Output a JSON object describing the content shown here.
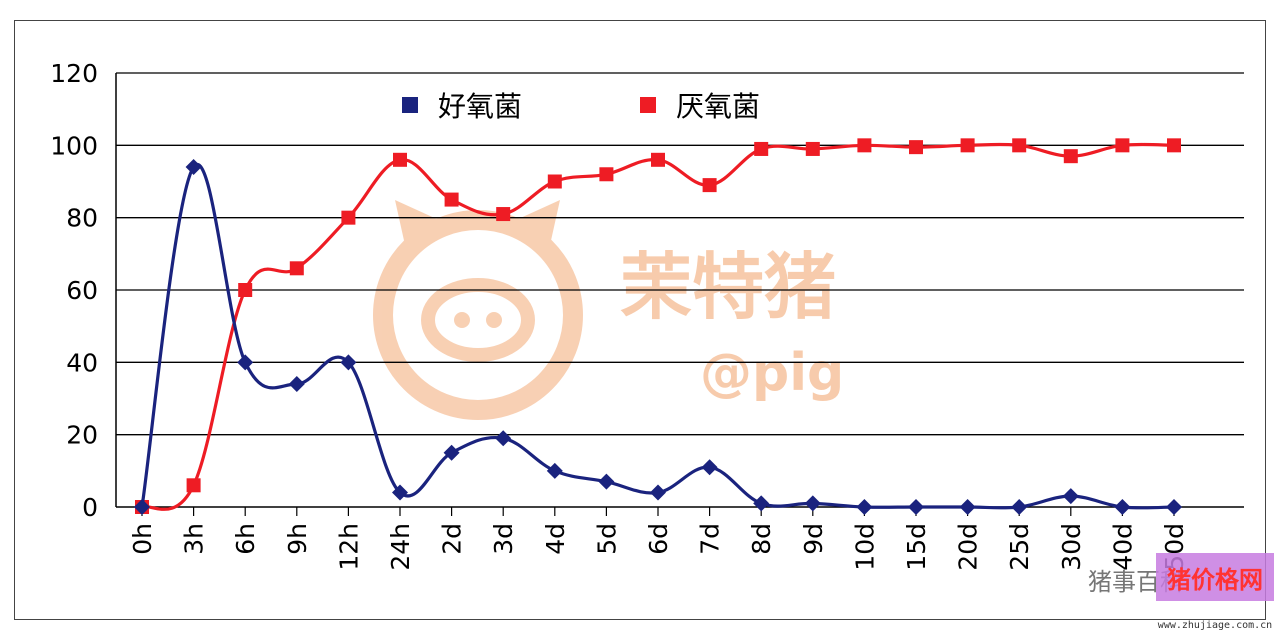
{
  "chart_data": {
    "type": "line",
    "title": "",
    "xlabel": "",
    "ylabel": "",
    "ylim": [
      0,
      120
    ],
    "yticks": [
      0,
      20,
      40,
      60,
      80,
      100,
      120
    ],
    "grid": "horizontal",
    "legend_position": "top-center",
    "categories": [
      "0h",
      "3h",
      "6h",
      "9h",
      "12h",
      "24h",
      "2d",
      "3d",
      "4d",
      "5d",
      "6d",
      "7d",
      "8d",
      "9d",
      "10d",
      "15d",
      "20d",
      "25d",
      "30d",
      "40d",
      "50d"
    ],
    "series": [
      {
        "name": "好氧菌",
        "color": "#1a237e",
        "marker": "diamond",
        "values": [
          0,
          94,
          40,
          34,
          40,
          4,
          15,
          19,
          10,
          7,
          4,
          11,
          1,
          1,
          0,
          0,
          0,
          0,
          3,
          0,
          0
        ]
      },
      {
        "name": "厌氧菌",
        "color": "#ee1c24",
        "marker": "square",
        "values": [
          0,
          6,
          60,
          66,
          80,
          96,
          85,
          81,
          90,
          92,
          96,
          89,
          99,
          99,
          100,
          99.5,
          100,
          100,
          97,
          100,
          100
        ]
      }
    ]
  },
  "watermark": {
    "text": "茉特猪",
    "handle": "@pig",
    "corner_text": "猪事百科",
    "site_badge": "猪价格网",
    "site_url": "www.zhujiage.com.cn"
  }
}
